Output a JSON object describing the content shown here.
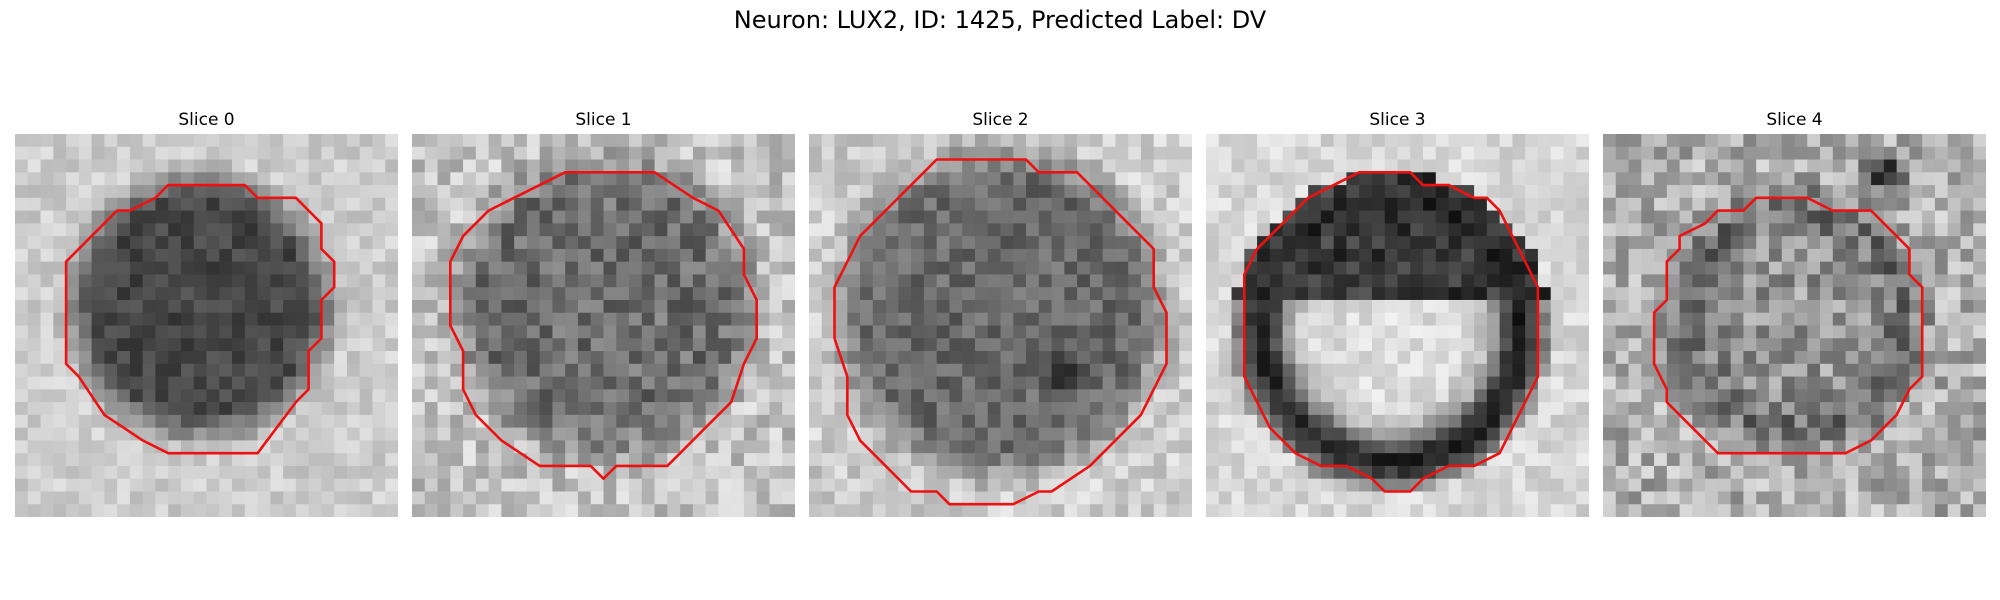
{
  "figure": {
    "title": "Neuron: LUX2, ID: 1425, Predicted Label: DV"
  },
  "panels": [
    {
      "title": "Slice 0",
      "contour_color": "#ee1111",
      "texture": "dark-disk-light-background"
    },
    {
      "title": "Slice 1",
      "contour_color": "#ee1111",
      "texture": "mid-gray-noisy-disk"
    },
    {
      "title": "Slice 2",
      "contour_color": "#ee1111",
      "texture": "mid-gray-disk-dark-spot"
    },
    {
      "title": "Slice 3",
      "contour_color": "#ee1111",
      "texture": "dark-ring-bright-center"
    },
    {
      "title": "Slice 4",
      "contour_color": "#ee1111",
      "texture": "faint-gray-disk-noisy-background"
    }
  ]
}
